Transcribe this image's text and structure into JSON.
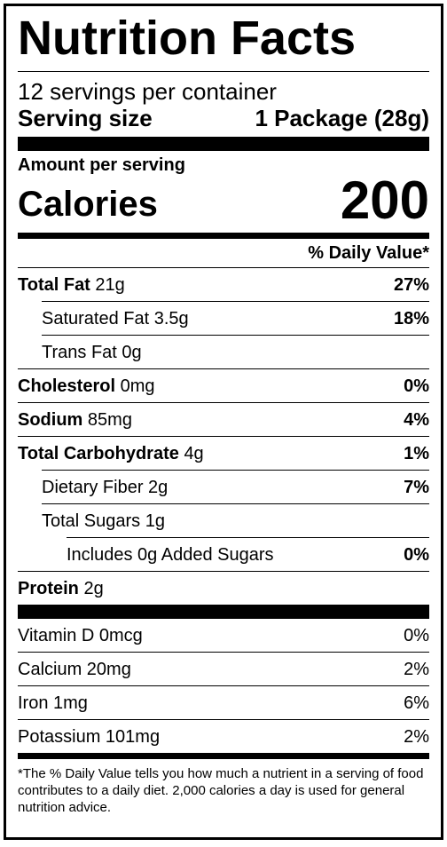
{
  "title": "Nutrition Facts",
  "servings_per_container": "12 servings per container",
  "serving_size": {
    "label": "Serving size",
    "value": "1 Package (28g)"
  },
  "amount_per_serving": "Amount per serving",
  "calories": {
    "label": "Calories",
    "value": "200"
  },
  "daily_value_header": "% Daily Value*",
  "nutrients": {
    "total_fat": {
      "name": "Total Fat",
      "amount": "21g",
      "dv": "27%"
    },
    "saturated_fat": {
      "name": "Saturated Fat",
      "amount": "3.5g",
      "dv": "18%"
    },
    "trans_fat": {
      "name": "Trans Fat",
      "amount": "0g",
      "dv": ""
    },
    "cholesterol": {
      "name": "Cholesterol",
      "amount": "0mg",
      "dv": "0%"
    },
    "sodium": {
      "name": "Sodium",
      "amount": "85mg",
      "dv": "4%"
    },
    "total_carbohydrate": {
      "name": "Total Carbohydrate",
      "amount": "4g",
      "dv": "1%"
    },
    "dietary_fiber": {
      "name": "Dietary Fiber",
      "amount": "2g",
      "dv": "7%"
    },
    "total_sugars": {
      "name": "Total Sugars",
      "amount": "1g",
      "dv": ""
    },
    "added_sugars": {
      "name": "Includes 0g Added Sugars",
      "dv": "0%"
    },
    "protein": {
      "name": "Protein",
      "amount": "2g"
    }
  },
  "vitamins": [
    {
      "name": "Vitamin D 0mcg",
      "dv": "0%"
    },
    {
      "name": "Calcium 20mg",
      "dv": "2%"
    },
    {
      "name": "Iron 1mg",
      "dv": "6%"
    },
    {
      "name": "Potassium 101mg",
      "dv": "2%"
    }
  ],
  "footnote": "*The % Daily Value tells you how much a nutrient in a serving of food contributes to a daily diet. 2,000 calories a day is used for general nutrition advice."
}
